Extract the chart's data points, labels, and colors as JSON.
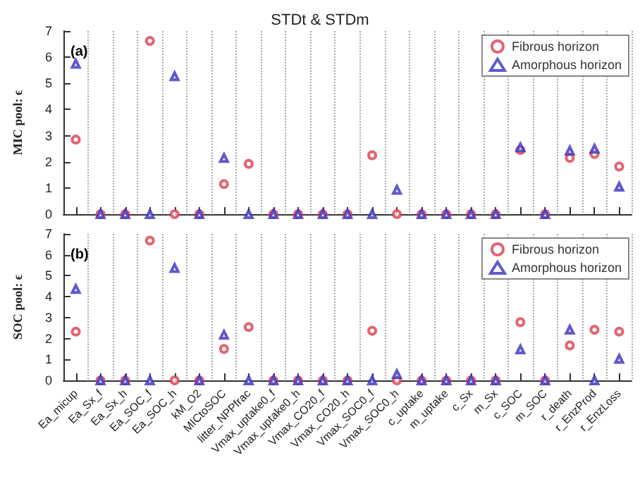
{
  "chart_data": [
    {
      "type": "scatter",
      "title": "STDt & STDm",
      "ylabel": "MIC pool: ϵ",
      "annotations": [
        "(a)"
      ],
      "categories": [
        null,
        null,
        null,
        null,
        null,
        null,
        null,
        null,
        null,
        null,
        null,
        null,
        null,
        null,
        null,
        null,
        null,
        null,
        null,
        null,
        null,
        null,
        null
      ],
      "series": [
        {
          "name": "Fibrous horizon",
          "color": "#d9404f",
          "marker": "circle",
          "values": [
            2.85,
            0,
            0,
            6.62,
            0,
            0,
            1.15,
            1.92,
            0,
            0,
            0,
            0,
            2.25,
            0,
            0,
            0,
            0,
            0,
            2.45,
            0,
            2.15,
            2.3,
            1.82
          ]
        },
        {
          "name": "Amorphous horizon",
          "color": "#3a2fc0",
          "marker": "triangle",
          "values": [
            5.75,
            0,
            0,
            0,
            5.27,
            0,
            2.15,
            0,
            0,
            0,
            0,
            0,
            0,
            0.93,
            0,
            0,
            0,
            0,
            2.55,
            0,
            2.43,
            2.5,
            1.05
          ]
        }
      ],
      "ylim": [
        0,
        7
      ],
      "yticks": [
        0,
        1,
        2,
        3,
        4,
        5,
        6,
        7
      ],
      "grid": "x",
      "legend": "top right",
      "tick_labels": "y"
    },
    {
      "type": "scatter",
      "ylabel": "SOC pool: ϵ",
      "annotations": [
        "(b)"
      ],
      "categories": [
        "Ea_micup",
        "Ea_Sx_f",
        "Ea_Sx_h",
        "Ea_SOC_f",
        "Ea_SOC_h",
        "kM_O2",
        "MICtoSOC",
        "litter_NPPfrac",
        "Vmax_uptake0_f",
        "Vmax_uptake0_h",
        "Vmax_CO20_f",
        "Vmax_CO20_h",
        "Vmax_SOC0_f",
        "Vmax_SOC0_h",
        "c_uptake",
        "m_uptake",
        "c_Sx",
        "m_Sx",
        "c_SOC",
        "m_SOC",
        "r_death",
        "r_EnzProd",
        "r_EnzLoss"
      ],
      "series": [
        {
          "name": "Fibrous horizon",
          "color": "#d9404f",
          "marker": "circle",
          "values": [
            2.33,
            0,
            0,
            6.68,
            0,
            0,
            1.5,
            2.55,
            0,
            0,
            0,
            0,
            2.37,
            0,
            0,
            0,
            0,
            0,
            2.78,
            0,
            1.67,
            2.42,
            2.33
          ]
        },
        {
          "name": "Amorphous horizon",
          "color": "#3a2fc0",
          "marker": "triangle",
          "values": [
            4.37,
            0,
            0,
            0,
            5.37,
            0,
            2.18,
            0,
            0,
            0,
            0,
            0,
            0,
            0.3,
            0,
            0,
            0,
            0,
            1.48,
            0,
            2.42,
            0,
            1.03
          ]
        }
      ],
      "ylim": [
        0,
        7
      ],
      "yticks": [
        0,
        1,
        2,
        3,
        4,
        5,
        6,
        7
      ],
      "grid": "x",
      "legend": "top right"
    }
  ]
}
